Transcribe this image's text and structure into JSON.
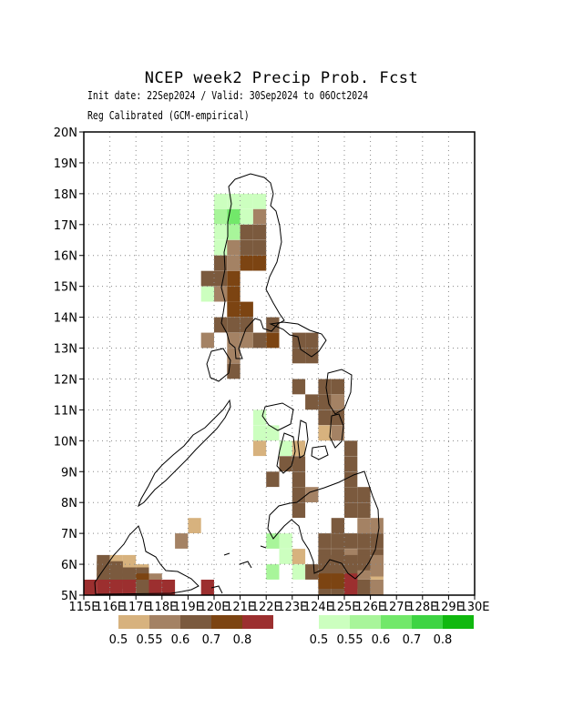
{
  "title": "NCEP week2 Precip Prob. Fcst",
  "subtitle_1": "Init date: 22Sep2024 / Valid: 30Sep2024 to 06Oct2024",
  "subtitle_2": "Reg Calibrated (GCM-empirical)",
  "map": {
    "lon_range": [
      115,
      130
    ],
    "lat_range": [
      5,
      20
    ],
    "x_tick_labels": [
      "115E",
      "116E",
      "117E",
      "118E",
      "119E",
      "120E",
      "121E",
      "122E",
      "123E",
      "124E",
      "125E",
      "126E",
      "127E",
      "128E",
      "129E",
      "130E"
    ],
    "y_tick_labels": [
      "5N",
      "6N",
      "7N",
      "8N",
      "9N",
      "10N",
      "11N",
      "12N",
      "13N",
      "14N",
      "15N",
      "16N",
      "17N",
      "18N",
      "19N",
      "20N"
    ],
    "grid": "dotted",
    "dry_colors": [
      "#d7b27e",
      "#a48264",
      "#7b5a3e",
      "#7c4412",
      "#9c2f2f"
    ],
    "wet_colors": [
      "#ccffbf",
      "#a8f59a",
      "#72e86a",
      "#3ed443",
      "#10b80f"
    ]
  },
  "legend": {
    "dry_labels": [
      "0.5",
      "0.55",
      "0.6",
      "0.7",
      "0.8"
    ],
    "wet_labels": [
      "0.5",
      "0.55",
      "0.6",
      "0.7",
      "0.8"
    ]
  }
}
